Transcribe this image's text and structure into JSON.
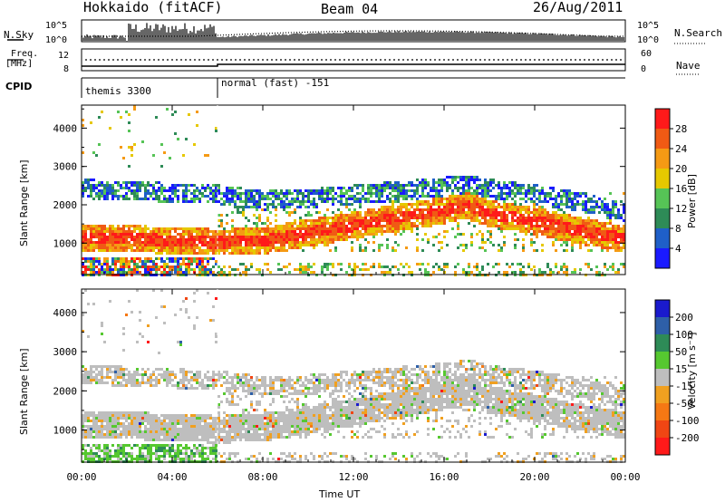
{
  "header": {
    "station": "Hokkaido (fitACF)",
    "beam": "Beam 04",
    "date": "26/Aug/2011"
  },
  "top_panels": {
    "nsky_label": "N.Sky",
    "nsky_ticks": [
      "10^5",
      "10^0"
    ],
    "nsearch_label": "N.Search",
    "freq_label_1": "Freq.",
    "freq_label_2": "[MHz]",
    "freq_ticks": [
      "12",
      "8"
    ],
    "nave_ticks": [
      "60",
      "0"
    ],
    "nave_label": "Nave",
    "cpid_label": "CPID",
    "cpid_segments": [
      {
        "name": "themis 3300",
        "start_hour": 0,
        "end_hour": 6
      },
      {
        "name": "normal (fast) -151",
        "start_hour": 6,
        "end_hour": 24
      }
    ]
  },
  "chart_data": [
    {
      "type": "heatmap",
      "title": "Power",
      "xlabel": "Time UT",
      "ylabel": "Slant Range [km]",
      "x_ticks": [
        "00:00",
        "04:00",
        "08:00",
        "12:00",
        "16:00",
        "20:00",
        "00:00"
      ],
      "x_range_hours": [
        0,
        24
      ],
      "y_ticks": [
        1000,
        2000,
        3000,
        4000
      ],
      "ylim": [
        180,
        4600
      ],
      "colorbar_label": "Power [dB]",
      "colorbar_ticks": [
        4,
        8,
        12,
        16,
        20,
        24,
        28
      ],
      "colorbar_range": [
        0,
        32
      ],
      "colors": [
        "#1a1aff",
        "#1f5fc8",
        "#2e8b57",
        "#56c456",
        "#e6c800",
        "#f59a14",
        "#f05a14",
        "#ff1a1a"
      ],
      "bands": [
        {
          "range_center": [
            1150,
            1150,
            1100,
            1050,
            1100,
            1300,
            1500,
            1700,
            1900,
            2000,
            1800,
            1600,
            1350,
            1150
          ],
          "hours": [
            0,
            2,
            4,
            6,
            8,
            10,
            12,
            14,
            16,
            17,
            18,
            20,
            22,
            24
          ],
          "dB": 26
        },
        {
          "range_center": [
            2450,
            2400,
            2350,
            2300,
            2150,
            2200,
            2300,
            2400,
            2500,
            2600,
            2450,
            2300,
            2100,
            1850
          ],
          "hours": [
            0,
            2,
            4,
            6,
            8,
            10,
            12,
            14,
            16,
            17,
            18,
            20,
            22,
            24
          ],
          "dB": 10
        }
      ]
    },
    {
      "type": "heatmap",
      "title": "Velocity",
      "xlabel": "Time UT",
      "ylabel": "Slant Range [km]",
      "x_ticks": [
        "00:00",
        "04:00",
        "08:00",
        "12:00",
        "16:00",
        "20:00",
        "00:00"
      ],
      "x_range_hours": [
        0,
        24
      ],
      "y_ticks": [
        1000,
        2000,
        3000,
        4000
      ],
      "ylim": [
        180,
        4600
      ],
      "colorbar_label": "Velocity [m s⁻¹]",
      "colorbar_ticks": [
        200,
        100,
        50,
        15,
        -15,
        -50,
        -100,
        -200
      ],
      "colors": [
        "#1a1acd",
        "#2e5fa8",
        "#2e8b57",
        "#56c830",
        "#bebebe",
        "#f0a020",
        "#f57814",
        "#f04614",
        "#ff1a1a"
      ],
      "dominant_class": "-15 to 15"
    }
  ]
}
